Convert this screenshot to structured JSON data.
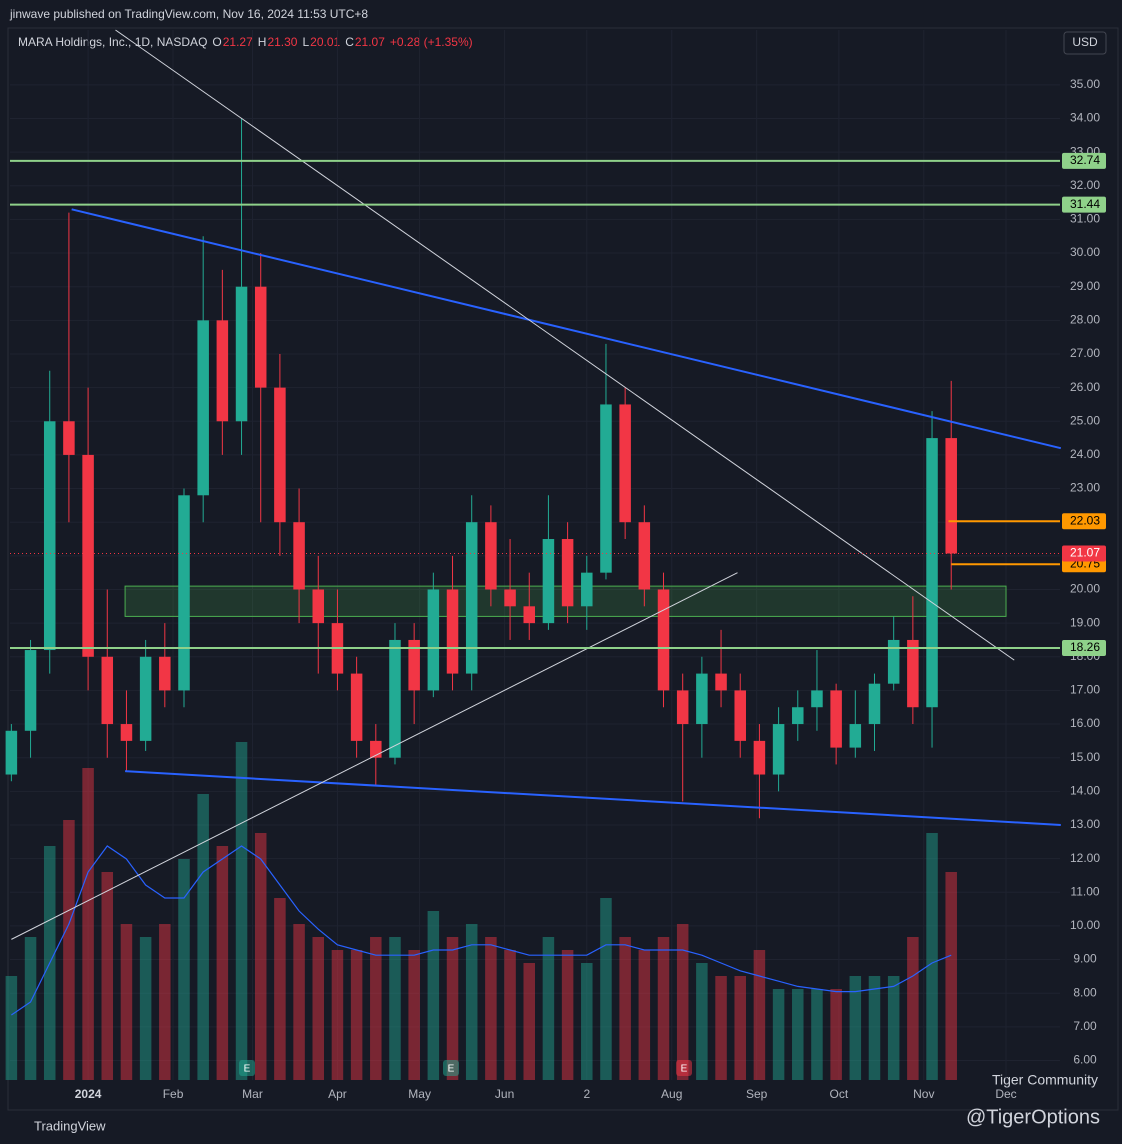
{
  "header": {
    "published": "jinwave published on TradingView.com, Nov 16, 2024 11:53 UTC+8",
    "symbol": "MARA Holdings, Inc., 1D, NASDAQ",
    "o_key": "O",
    "o": "21.27",
    "h_key": "H",
    "h": "21.30",
    "l_key": "L",
    "l": "20.01",
    "c_key": "C",
    "c": "21.07",
    "change": "+0.28 (+1.35%)",
    "currency": "USD"
  },
  "footer": {
    "brand": "TradingView",
    "community": "Tiger Community",
    "handle": "@TigerOptions"
  },
  "chart_data": {
    "type": "candlestick",
    "up_color": "#22ab94",
    "down_color": "#f23645",
    "grid": true,
    "x": [
      -28,
      -21,
      -14,
      -7,
      0,
      7,
      14,
      21,
      28,
      35,
      42,
      49,
      56,
      63,
      70,
      77,
      84,
      91,
      98,
      105,
      112,
      119,
      126,
      133,
      140,
      147,
      154,
      161,
      168,
      175,
      182,
      189,
      196,
      203,
      210,
      217,
      224,
      231,
      238,
      245,
      252,
      259,
      266,
      273,
      280,
      287,
      294,
      301,
      308,
      315
    ],
    "open": [
      14.5,
      15.8,
      18.2,
      25,
      24,
      18,
      16,
      15.5,
      18,
      17,
      22.8,
      28,
      25,
      29,
      26,
      22,
      20,
      19,
      17.5,
      15.5,
      15,
      18.5,
      17,
      20,
      17.5,
      22,
      20,
      19.5,
      19,
      21.5,
      19.5,
      20.5,
      25.5,
      22,
      20,
      17,
      16,
      17.5,
      17,
      15.5,
      14.5,
      16,
      16.5,
      17,
      15.3,
      16,
      17.2,
      18.5,
      16.5,
      24.5
    ],
    "high": [
      16,
      18.5,
      26.5,
      31.2,
      26,
      20,
      17,
      18.5,
      19,
      23,
      30.5,
      29.5,
      34,
      30,
      27,
      23,
      21,
      20,
      18,
      16,
      19,
      19,
      20.5,
      21,
      22.8,
      22.5,
      21.5,
      20.5,
      22.8,
      22,
      21,
      27.3,
      26,
      22.5,
      20.5,
      17.5,
      18,
      18.8,
      17.5,
      16,
      16.5,
      17,
      18.2,
      17.2,
      17,
      17.5,
      19.2,
      19.8,
      25.3,
      26.2
    ],
    "low": [
      14.3,
      15,
      17.5,
      22,
      17,
      15,
      14.6,
      15.2,
      16.5,
      16.5,
      22,
      24,
      24,
      22,
      21,
      19,
      17.5,
      17,
      15,
      14.2,
      14.8,
      16,
      16.8,
      17,
      17,
      19.5,
      18.5,
      18.5,
      18.8,
      19,
      18.8,
      20.3,
      21.5,
      19.5,
      16.5,
      13.7,
      15,
      16.5,
      15,
      13.2,
      14,
      15.5,
      15.8,
      14.8,
      15,
      15.2,
      17,
      16,
      15.3,
      20
    ],
    "close": [
      15.8,
      18.2,
      25,
      24,
      18,
      16,
      15.5,
      18,
      17,
      22.8,
      28,
      25,
      29,
      26,
      22,
      20,
      19,
      17.5,
      15.5,
      15,
      18.5,
      17,
      20,
      17.5,
      22,
      20,
      19.5,
      19,
      21.5,
      19.5,
      20.5,
      25.5,
      22,
      20,
      17,
      16,
      17.5,
      17,
      15.5,
      14.5,
      16,
      16.5,
      17,
      15.3,
      16,
      17.2,
      18.5,
      16.5,
      24.5,
      21.07
    ],
    "volume": [
      40,
      55,
      90,
      100,
      120,
      80,
      60,
      55,
      60,
      85,
      110,
      90,
      130,
      95,
      70,
      60,
      55,
      50,
      50,
      55,
      55,
      50,
      65,
      55,
      60,
      55,
      50,
      45,
      55,
      50,
      45,
      70,
      55,
      50,
      55,
      60,
      45,
      40,
      40,
      50,
      35,
      35,
      35,
      35,
      40,
      40,
      40,
      55,
      95,
      80
    ],
    "volume_ma": [
      25,
      30,
      45,
      60,
      80,
      90,
      85,
      75,
      70,
      70,
      80,
      85,
      90,
      85,
      75,
      65,
      58,
      52,
      50,
      48,
      48,
      48,
      50,
      50,
      52,
      52,
      50,
      48,
      48,
      48,
      48,
      52,
      52,
      50,
      50,
      50,
      48,
      45,
      42,
      40,
      38,
      36,
      35,
      34,
      34,
      35,
      36,
      40,
      45,
      48
    ],
    "volume_ma_color": "#2962ff",
    "vlim": [
      0,
      100
    ],
    "xlim": [
      -28.5,
      354.7
    ],
    "ylim": [
      5.42,
      36.63
    ],
    "xticks": [
      {
        "value": 0,
        "label": "2024"
      },
      {
        "value": 31,
        "label": "Feb"
      },
      {
        "value": 60,
        "label": "Mar"
      },
      {
        "value": 91,
        "label": "Apr"
      },
      {
        "value": 121,
        "label": "May"
      },
      {
        "value": 152,
        "label": "Jun"
      },
      {
        "value": 182,
        "label": "2"
      },
      {
        "value": 213,
        "label": "Aug"
      },
      {
        "value": 244,
        "label": "Sep"
      },
      {
        "value": 274,
        "label": "Oct"
      },
      {
        "value": 305,
        "label": "Nov"
      },
      {
        "value": 335,
        "label": "Dec"
      }
    ],
    "yticks": [
      {
        "value": 6,
        "label": "6.00"
      },
      {
        "value": 7,
        "label": "7.00"
      },
      {
        "value": 8,
        "label": "8.00"
      },
      {
        "value": 9,
        "label": "9.00"
      },
      {
        "value": 10,
        "label": "10.00"
      },
      {
        "value": 11,
        "label": "11.00"
      },
      {
        "value": 12,
        "label": "12.00"
      },
      {
        "value": 13,
        "label": "13.00"
      },
      {
        "value": 14,
        "label": "14.00"
      },
      {
        "value": 15,
        "label": "15.00"
      },
      {
        "value": 16,
        "label": "16.00"
      },
      {
        "value": 17,
        "label": "17.00"
      },
      {
        "value": 18,
        "label": "18.00"
      },
      {
        "value": 19,
        "label": "19.00"
      },
      {
        "value": 20,
        "label": "20.00"
      },
      {
        "value": 21,
        "label": "21.00"
      },
      {
        "value": 22,
        "label": "22.00"
      },
      {
        "value": 23,
        "label": "23.00"
      },
      {
        "value": 24,
        "label": "24.00"
      },
      {
        "value": 25,
        "label": "25.00"
      },
      {
        "value": 26,
        "label": "26.00"
      },
      {
        "value": 27,
        "label": "27.00"
      },
      {
        "value": 28,
        "label": "28.00"
      },
      {
        "value": 29,
        "label": "29.00"
      },
      {
        "value": 30,
        "label": "30.00"
      },
      {
        "value": 31,
        "label": "31.00"
      },
      {
        "value": 32,
        "label": "32.00"
      },
      {
        "value": 33,
        "label": "33.00"
      },
      {
        "value": 34,
        "label": "34.00"
      },
      {
        "value": 35,
        "label": "35.00"
      }
    ],
    "levels": [
      {
        "value": 32.74,
        "label": "32.74",
        "color": "#8fd18a",
        "from": -28.5,
        "to": 354.7
      },
      {
        "value": 31.44,
        "label": "31.44",
        "color": "#8fd18a",
        "from": -28.5,
        "to": 354.7
      },
      {
        "value": 18.26,
        "label": "18.26",
        "color": "#8fd18a",
        "from": -28.5,
        "to": 354.7
      },
      {
        "value": 22.03,
        "label": "22.03",
        "color": "#ff9800",
        "from": 314,
        "to": 354.7
      },
      {
        "value": 20.75,
        "label": "20.75",
        "color": "#ff9800",
        "from": 315,
        "to": 354.7
      },
      {
        "value": 21.07,
        "label": "21.07",
        "color": "#f23645",
        "from": -28.5,
        "to": 354.7,
        "dotted": true
      }
    ],
    "zone": {
      "x": [
        13.5,
        335
      ],
      "y": [
        19.2,
        20.1
      ],
      "color": "#4caf50"
    },
    "lines": [
      {
        "color": "#2962ff",
        "x": [
          -6,
          355
        ],
        "y": [
          31.3,
          24.2
        ]
      },
      {
        "color": "#2962ff",
        "x": [
          13.5,
          355
        ],
        "y": [
          14.6,
          13.0
        ]
      },
      {
        "color": "#d1d4dc",
        "x": [
          10,
          338
        ],
        "y": [
          36.63,
          17.9
        ]
      },
      {
        "color": "#d1d4dc",
        "x": [
          -28,
          237
        ],
        "y": [
          9.6,
          20.5
        ]
      }
    ],
    "earnings": [
      "E",
      "E",
      "E"
    ]
  }
}
